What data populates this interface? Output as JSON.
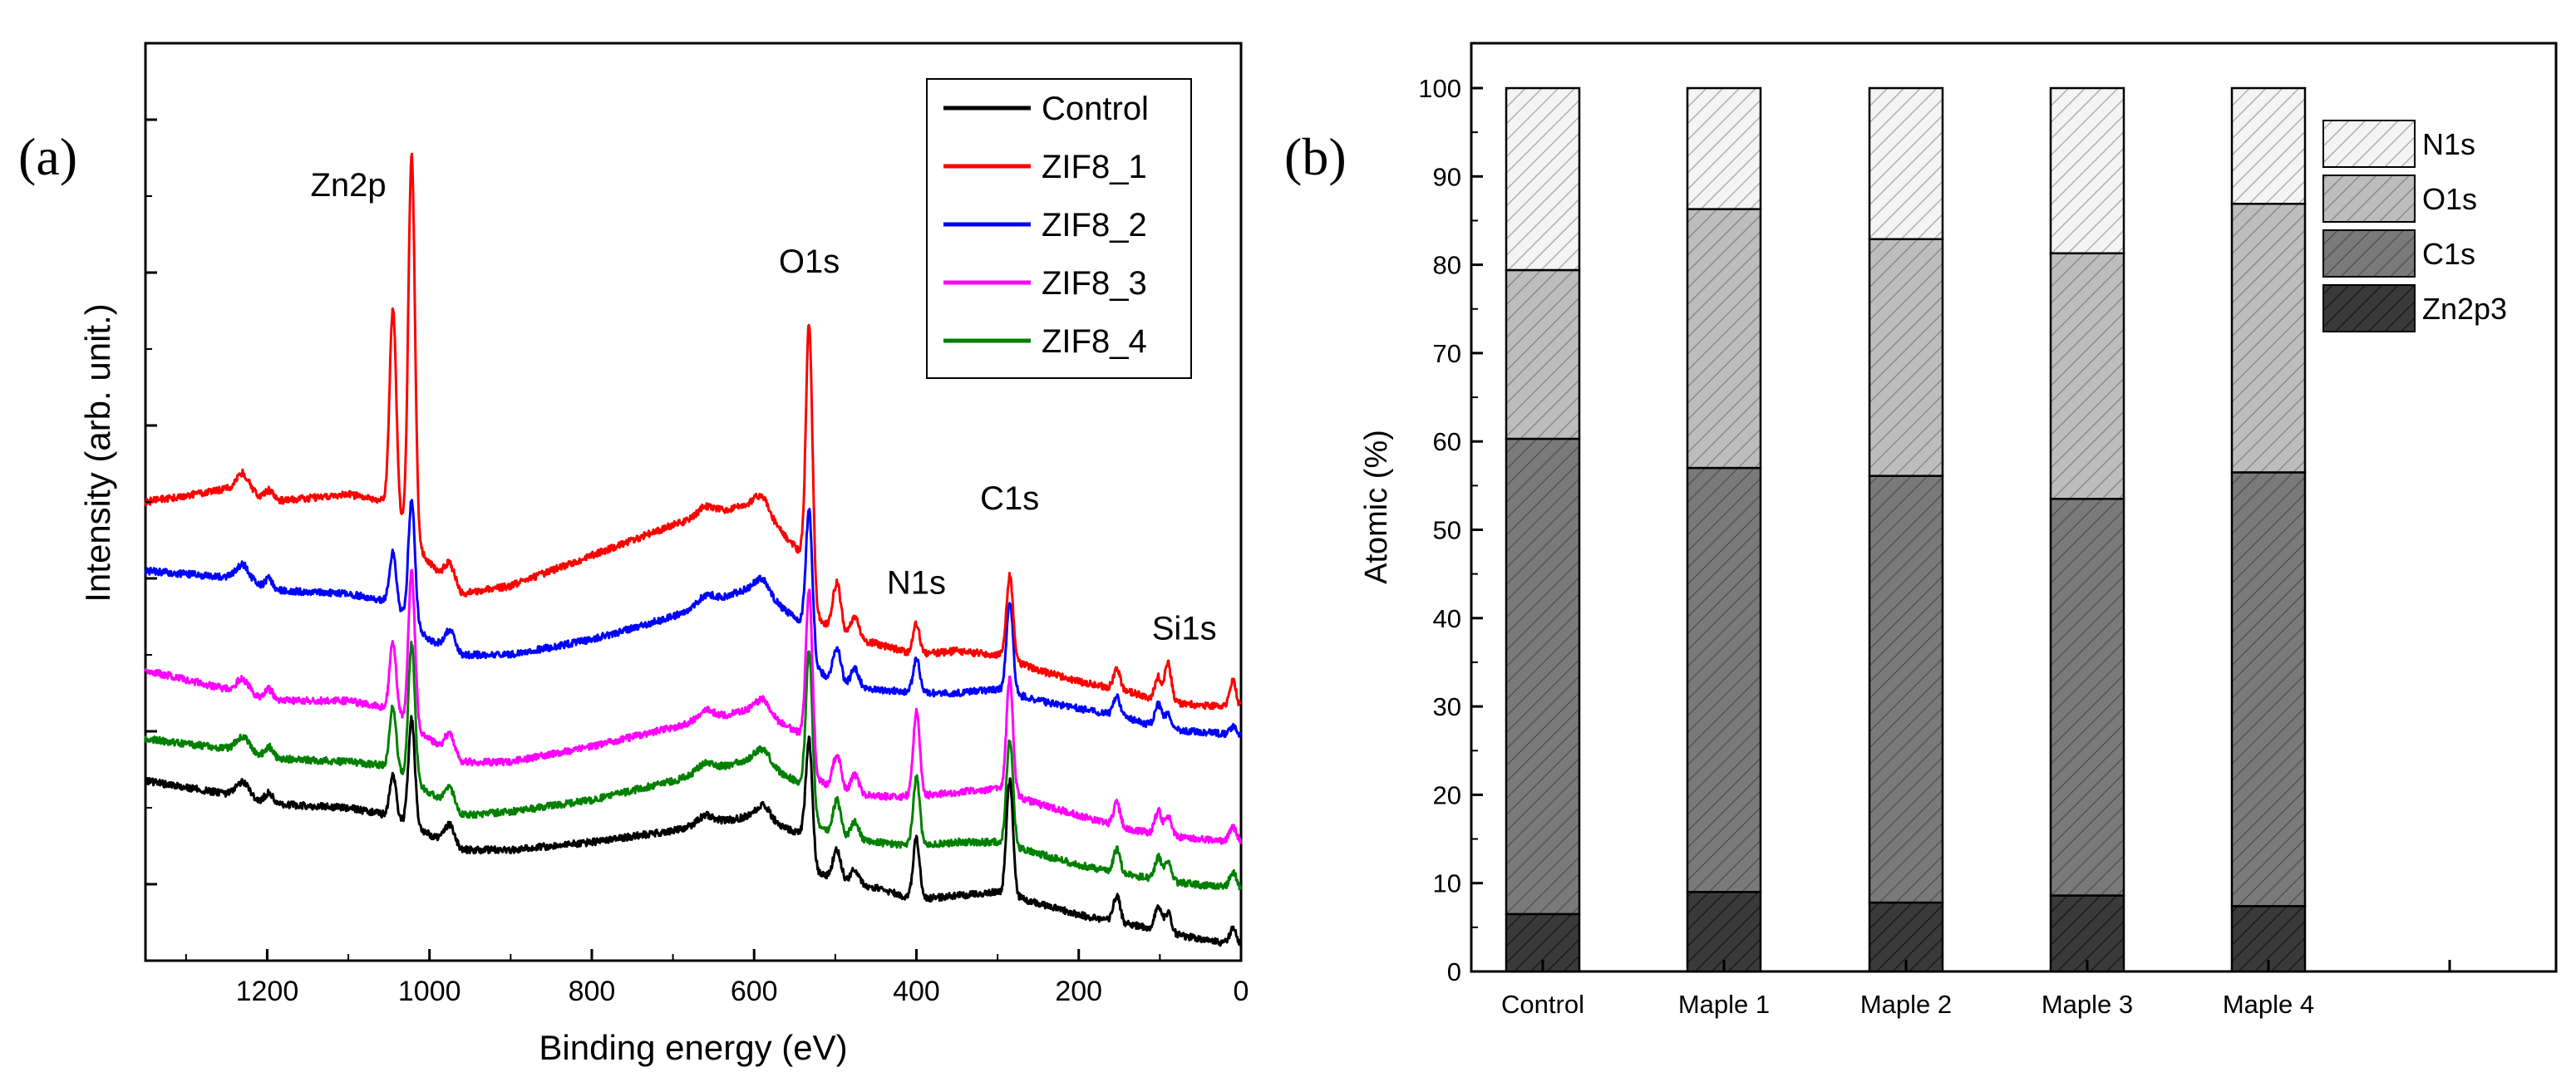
{
  "chart_data": [
    {
      "panel_label": "(a)",
      "type": "line",
      "title": "",
      "xlabel": "Binding energy (eV)",
      "ylabel": "Intensity (arb. unit.)",
      "xlim": [
        1350,
        0
      ],
      "x_inverted": true,
      "ylim": [
        0,
        12
      ],
      "x_ticks": [
        "1200",
        "1000",
        "800",
        "600",
        "400",
        "200",
        "0"
      ],
      "x_tick_values": [
        1200,
        1000,
        800,
        600,
        400,
        200,
        0
      ],
      "y_ticklabels_shown": false,
      "legend_position": "top-right",
      "peak_annotations": [
        {
          "text": "Zn2p",
          "x": 1100,
          "y": 10.0
        },
        {
          "text": "O1s",
          "x": 532,
          "y": 9.0
        },
        {
          "text": "N1s",
          "x": 400,
          "y": 4.8
        },
        {
          "text": "C1s",
          "x": 285,
          "y": 5.9
        },
        {
          "text": "Si1s",
          "x": 70,
          "y": 4.2
        }
      ],
      "peaks": [
        {
          "x": 1045,
          "w": 4,
          "h": [
            0.55,
            2.6,
            0.7,
            0.9,
            0.8
          ]
        },
        {
          "x": 1022,
          "w": 4,
          "h": [
            1.4,
            5.0,
            1.6,
            2.0,
            1.8
          ]
        },
        {
          "x": 532,
          "w": 4,
          "h": [
            1.6,
            3.6,
            1.9,
            2.3,
            2.1
          ]
        },
        {
          "x": 498,
          "w": 5,
          "h": [
            0.4,
            0.7,
            0.5,
            0.5,
            0.5
          ]
        },
        {
          "x": 476,
          "w": 5,
          "h": [
            0.2,
            0.3,
            0.25,
            0.25,
            0.25
          ]
        },
        {
          "x": 400,
          "w": 4,
          "h": [
            0.8,
            0.4,
            0.45,
            1.1,
            0.9
          ]
        },
        {
          "x": 285,
          "w": 4,
          "h": [
            1.5,
            1.1,
            1.2,
            1.5,
            1.4
          ]
        },
        {
          "x": 153,
          "w": 4,
          "h": [
            0.35,
            0.25,
            0.25,
            0.3,
            0.3
          ]
        },
        {
          "x": 102,
          "w": 4,
          "h": [
            0.3,
            0.3,
            0.3,
            0.3,
            0.3
          ]
        },
        {
          "x": 90,
          "w": 4,
          "h": [
            0.25,
            0.5,
            0.2,
            0.25,
            0.25
          ]
        },
        {
          "x": 10,
          "w": 4,
          "h": [
            0.2,
            0.35,
            0.1,
            0.2,
            0.2
          ]
        }
      ],
      "series": [
        {
          "name": "Control",
          "color": "#000000",
          "x": [
            1350,
            1230,
            1200,
            1100,
            1050,
            1000,
            960,
            900,
            800,
            700,
            600,
            540,
            530,
            500,
            450,
            400,
            350,
            300,
            250,
            200,
            150,
            100,
            60,
            0
          ],
          "y": [
            2.35,
            2.15,
            2.05,
            2.0,
            1.9,
            1.65,
            1.45,
            1.45,
            1.55,
            1.7,
            1.9,
            1.65,
            1.2,
            1.05,
            0.95,
            0.8,
            0.85,
            0.9,
            0.75,
            0.6,
            0.5,
            0.4,
            0.3,
            0.2
          ]
        },
        {
          "name": "ZIF8_1",
          "color": "#ff0000",
          "x": [
            1350,
            1230,
            1200,
            1100,
            1050,
            1000,
            960,
            900,
            800,
            700,
            600,
            540,
            530,
            500,
            450,
            400,
            350,
            300,
            250,
            200,
            150,
            100,
            60,
            0
          ],
          "y": [
            6.0,
            6.2,
            6.0,
            6.1,
            6.0,
            5.2,
            4.8,
            4.9,
            5.3,
            5.7,
            6.0,
            5.3,
            4.6,
            4.25,
            4.15,
            4.0,
            4.05,
            4.0,
            3.8,
            3.65,
            3.55,
            3.4,
            3.35,
            3.3
          ]
        },
        {
          "name": "ZIF8_2",
          "color": "#0000ff",
          "x": [
            1350,
            1230,
            1200,
            1100,
            1050,
            1000,
            960,
            900,
            800,
            700,
            600,
            540,
            530,
            500,
            450,
            400,
            350,
            300,
            250,
            200,
            150,
            100,
            60,
            0
          ],
          "y": [
            5.1,
            5.0,
            4.85,
            4.8,
            4.7,
            4.2,
            4.0,
            4.0,
            4.2,
            4.5,
            4.9,
            4.4,
            3.9,
            3.6,
            3.55,
            3.5,
            3.5,
            3.55,
            3.4,
            3.3,
            3.2,
            3.05,
            3.0,
            2.95
          ]
        },
        {
          "name": "ZIF8_3",
          "color": "#ff00ff",
          "x": [
            1350,
            1230,
            1200,
            1100,
            1050,
            1000,
            960,
            900,
            800,
            700,
            600,
            540,
            530,
            500,
            450,
            400,
            350,
            300,
            250,
            200,
            150,
            100,
            60,
            0
          ],
          "y": [
            3.8,
            3.5,
            3.4,
            3.4,
            3.3,
            2.9,
            2.6,
            2.6,
            2.8,
            3.05,
            3.3,
            2.95,
            2.45,
            2.2,
            2.15,
            2.15,
            2.2,
            2.25,
            2.05,
            1.9,
            1.75,
            1.65,
            1.6,
            1.55
          ]
        },
        {
          "name": "ZIF8_4",
          "color": "#008000",
          "x": [
            1350,
            1230,
            1200,
            1100,
            1050,
            1000,
            960,
            900,
            800,
            700,
            600,
            540,
            530,
            500,
            450,
            400,
            350,
            300,
            250,
            200,
            150,
            100,
            60,
            0
          ],
          "y": [
            2.9,
            2.75,
            2.65,
            2.6,
            2.55,
            2.2,
            1.9,
            1.95,
            2.1,
            2.35,
            2.65,
            2.3,
            1.85,
            1.6,
            1.55,
            1.5,
            1.55,
            1.55,
            1.4,
            1.25,
            1.15,
            1.05,
            1.0,
            0.95
          ]
        }
      ]
    },
    {
      "panel_label": "(b)",
      "type": "bar",
      "stacked": true,
      "title": "",
      "xlabel": "",
      "ylabel": "Atomic (%)",
      "ylim": [
        0,
        100
      ],
      "y_ticks": [
        0,
        10,
        20,
        30,
        40,
        50,
        60,
        70,
        80,
        90,
        100
      ],
      "categories": [
        "Control",
        "Maple 1",
        "Maple 2",
        "Maple 3",
        "Maple 4"
      ],
      "legend_position": "top-right",
      "legend_order": [
        "N1s",
        "O1s",
        "C1s",
        "Zn2p3"
      ],
      "series": [
        {
          "name": "Zn2p3",
          "color": "#3a3a3a",
          "pattern": "hatch-dark",
          "values": [
            6.5,
            9.0,
            7.8,
            8.6,
            7.4
          ]
        },
        {
          "name": "C1s",
          "color": "#7a7a7a",
          "pattern": "hatch-mid",
          "values": [
            53.8,
            48.0,
            48.3,
            44.9,
            49.1
          ]
        },
        {
          "name": "O1s",
          "color": "#b8b8b8",
          "pattern": "hatch-light",
          "values": [
            19.1,
            29.3,
            26.8,
            27.8,
            30.4
          ]
        },
        {
          "name": "N1s",
          "color": "#f0f0f0",
          "pattern": "hatch-white",
          "values": [
            20.6,
            13.7,
            17.1,
            18.7,
            13.1
          ]
        }
      ]
    }
  ]
}
